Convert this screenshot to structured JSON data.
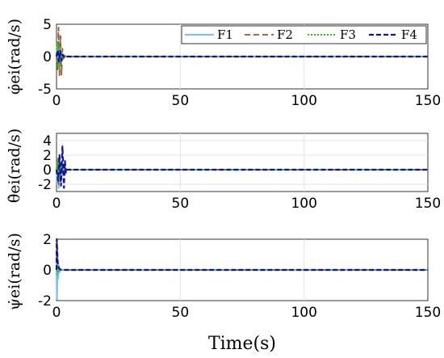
{
  "chart_data": [
    {
      "type": "line",
      "ylabel": "φ̇ei(rad/s)",
      "xlim": [
        0,
        150
      ],
      "ylim": [
        -5,
        5
      ],
      "xticks": [
        "0",
        "50",
        "100",
        "150"
      ],
      "yticks": [
        "5",
        "0",
        "-5"
      ],
      "ytick_values": [
        5,
        0,
        -5
      ],
      "grid": true,
      "legend": {
        "placement": "top-right",
        "entries": [
          "F1",
          "F2",
          "F3",
          "F4"
        ]
      },
      "series": [
        {
          "name": "F1",
          "x": [
            0,
            0.3,
            0.6,
            0.9,
            1.2,
            1.5,
            1.8,
            2.2,
            2.6,
            3.0,
            150
          ],
          "values": [
            0,
            1.5,
            -1.8,
            2.2,
            -1.2,
            0.8,
            -0.5,
            0.3,
            -0.1,
            0,
            0
          ]
        },
        {
          "name": "F2",
          "x": [
            0,
            0.4,
            0.8,
            1.2,
            1.6,
            2.0,
            2.4,
            2.8,
            3.2,
            3.6,
            150
          ],
          "values": [
            0,
            -2.0,
            4.5,
            -3.0,
            3.2,
            -2.8,
            1.2,
            -0.6,
            0.2,
            0,
            0
          ]
        },
        {
          "name": "F3",
          "x": [
            0,
            0.3,
            0.6,
            0.9,
            1.2,
            1.5,
            1.8,
            2.1,
            2.5,
            3.0,
            150
          ],
          "values": [
            0,
            2.2,
            -1.5,
            1.8,
            -2.0,
            1.0,
            -0.8,
            0.4,
            -0.2,
            0,
            0
          ]
        },
        {
          "name": "F4",
          "x": [
            0,
            0.5,
            1.0,
            1.5,
            2.0,
            2.5,
            3.0,
            3.5,
            150
          ],
          "values": [
            0,
            1.0,
            -0.8,
            0.9,
            -0.6,
            0.3,
            -0.1,
            0,
            0
          ]
        }
      ]
    },
    {
      "type": "line",
      "ylabel": "θ̇ei(rad/s)",
      "xlim": [
        0,
        150
      ],
      "ylim": [
        -3,
        5
      ],
      "xticks": [
        "0",
        "50",
        "100",
        "150"
      ],
      "yticks": [
        "4",
        "2",
        "0",
        "-2"
      ],
      "ytick_values": [
        4,
        2,
        0,
        -2
      ],
      "grid": true,
      "series": [
        {
          "name": "F1",
          "x": [
            0,
            0.3,
            0.6,
            0.9,
            1.2,
            1.5,
            1.8,
            2.2,
            2.6,
            3.0,
            150
          ],
          "values": [
            0,
            -1.8,
            1.5,
            -2.5,
            1.2,
            -1.0,
            0.6,
            -0.3,
            0.1,
            0,
            0
          ]
        },
        {
          "name": "F2",
          "x": [
            0,
            0.4,
            0.8,
            1.2,
            1.6,
            2.0,
            2.4,
            2.8,
            3.2,
            3.6,
            150
          ],
          "values": [
            0,
            1.2,
            -2.0,
            1.5,
            -1.6,
            0.9,
            -0.5,
            0.2,
            -0.1,
            0,
            0
          ]
        },
        {
          "name": "F3",
          "x": [
            0,
            0.3,
            0.6,
            0.9,
            1.2,
            1.5,
            1.8,
            2.1,
            2.5,
            3.0,
            150
          ],
          "values": [
            0,
            1.4,
            -1.2,
            1.8,
            -1.4,
            1.1,
            -0.7,
            0.4,
            -0.2,
            0,
            0
          ]
        },
        {
          "name": "F4",
          "x": [
            0,
            0.6,
            1.2,
            1.8,
            2.4,
            3.0,
            3.4,
            3.8,
            4.2,
            150
          ],
          "values": [
            0,
            -1.5,
            2.0,
            -2.2,
            3.2,
            -2.5,
            1.2,
            -0.4,
            0,
            0
          ]
        }
      ]
    },
    {
      "type": "line",
      "ylabel": "ψ̇ei(rad/s)",
      "xlim": [
        0,
        150
      ],
      "ylim": [
        -2,
        2
      ],
      "xticks": [
        "0",
        "50",
        "100",
        "150"
      ],
      "yticks": [
        "2",
        "0",
        "-2"
      ],
      "ytick_values": [
        2,
        0,
        -2
      ],
      "xlabel": "Time(s)",
      "grid": true,
      "series": [
        {
          "name": "F1",
          "x": [
            0,
            0.2,
            0.4,
            0.6,
            0.9,
            1.2,
            1.6,
            2.0,
            150
          ],
          "values": [
            0,
            -1.9,
            0.8,
            -0.6,
            0.3,
            -0.15,
            0.05,
            0,
            0
          ]
        },
        {
          "name": "F2",
          "x": [
            0,
            0.2,
            0.4,
            0.6,
            0.9,
            1.2,
            1.6,
            2.0,
            150
          ],
          "values": [
            1.6,
            1.8,
            0.6,
            0.3,
            0.15,
            0.08,
            0.03,
            0,
            0
          ]
        },
        {
          "name": "F3",
          "x": [
            0,
            0.2,
            0.4,
            0.6,
            0.9,
            1.2,
            1.6,
            2.0,
            150
          ],
          "values": [
            0,
            0.5,
            -0.3,
            0.2,
            -0.1,
            0.05,
            0.02,
            0,
            0
          ]
        },
        {
          "name": "F4",
          "x": [
            0,
            0.1,
            0.3,
            0.5,
            0.8,
            1.2,
            1.6,
            2.0,
            150
          ],
          "values": [
            0,
            2.0,
            1.2,
            0.5,
            0.2,
            0.08,
            0.02,
            0,
            0
          ]
        }
      ]
    }
  ],
  "styles": {
    "F1": {
      "color": "#79c3ee",
      "dash": "",
      "width": 2.2
    },
    "F2": {
      "color": "#a0522d",
      "dash": "7,4",
      "width": 1.8
    },
    "F3": {
      "color": "#33bb2a",
      "dash": "2,2",
      "width": 2
    },
    "F4": {
      "color": "#1111aa",
      "dash": "6,3",
      "width": 2.2
    }
  }
}
